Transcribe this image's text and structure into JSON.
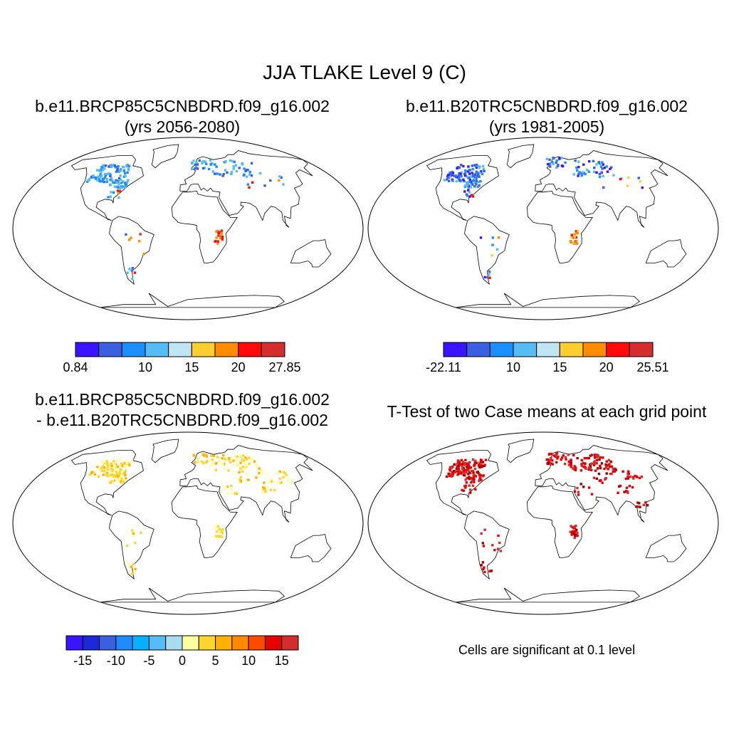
{
  "title": "JJA TLAKE Level 9 (C)",
  "panels": [
    {
      "id": "case1",
      "title_line1": "b.e11.BRCP85C5CNBDRD.f09_g16.002",
      "title_line2": "(yrs 2056-2080)",
      "colorbar": {
        "colors": [
          "#3b14ff",
          "#3a5fe0",
          "#1a8fff",
          "#55bcf5",
          "#c0e6f5",
          "#ffcf30",
          "#ff8c00",
          "#ff0a0a",
          "#d52d2d"
        ],
        "labels": [
          "0.84",
          "10",
          "15",
          "20",
          "27.85"
        ],
        "label_boundaries": [
          0,
          3,
          5,
          7,
          9
        ]
      }
    },
    {
      "id": "case2",
      "title_line1": "b.e11.B20TRC5CNBDRD.f09_g16.002",
      "title_line2": "(yrs 1981-2005)",
      "colorbar": {
        "colors": [
          "#3b14ff",
          "#3a5fe0",
          "#1a8fff",
          "#55bcf5",
          "#c0e6f5",
          "#ffcf30",
          "#ff8c00",
          "#ff0a0a",
          "#d52d2d"
        ],
        "labels": [
          "-22.11",
          "10",
          "15",
          "20",
          "25.51"
        ],
        "label_boundaries": [
          0,
          3,
          5,
          7,
          9
        ]
      }
    },
    {
      "id": "difference",
      "title_line1": "b.e11.BRCP85C5CNBDRD.f09_g16.002",
      "title_line2": "- b.e11.B20TRC5CNBDRD.f09_g16.002",
      "colorbar": {
        "colors": [
          "#3b14ff",
          "#1a28d8",
          "#3a5fe0",
          "#1e8cff",
          "#05b0ff",
          "#55bcf5",
          "#a8dcf0",
          "#ffffa0",
          "#ffd630",
          "#ffb000",
          "#ff8800",
          "#ff4a00",
          "#e80000",
          "#d52d2d"
        ],
        "labels": [
          "-15",
          "-10",
          "-5",
          "0",
          "5",
          "10",
          "15"
        ],
        "label_boundaries": [
          1,
          3,
          5,
          7,
          9,
          11,
          13
        ]
      }
    },
    {
      "id": "ttest",
      "title_line1": "T-Test of two Case means at each grid point",
      "title_line2": "",
      "note": "Cells are significant at 0.1 level"
    }
  ]
}
